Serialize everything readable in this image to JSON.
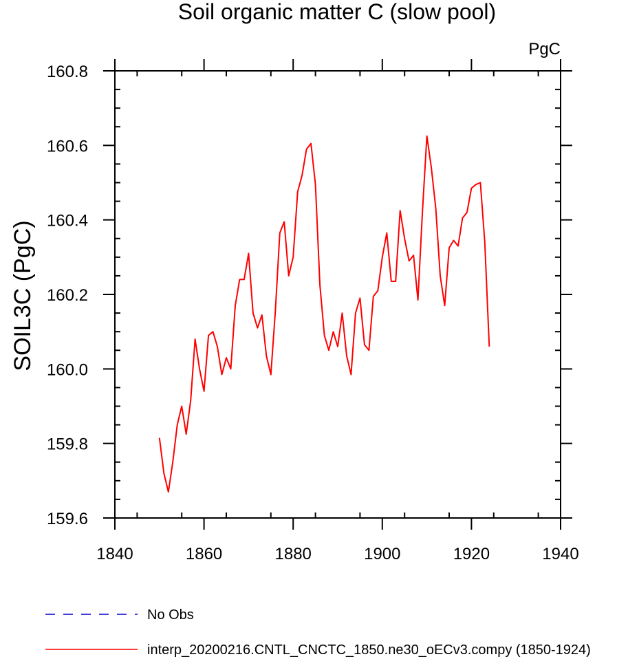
{
  "chart_data": {
    "type": "line",
    "title": "Soil organic matter C (slow pool)",
    "units": "PgC",
    "ylabel": "SOIL3C  (PgC)",
    "xlabel": "",
    "xlim": [
      1840,
      1940
    ],
    "ylim": [
      159.6,
      160.8
    ],
    "xticks": [
      1840,
      1860,
      1880,
      1900,
      1920,
      1940
    ],
    "yticks": [
      159.6,
      159.8,
      160.0,
      160.2,
      160.4,
      160.6,
      160.8
    ],
    "ytick_labels": [
      "159.6",
      "159.8",
      "160.0",
      "160.2",
      "160.4",
      "160.6",
      "160.8"
    ],
    "grid": false,
    "legend": [
      {
        "label": "No Obs",
        "style": "dashed",
        "color": "#0000cc"
      },
      {
        "label": "interp_20200216.CNTL_CNCTC_1850.ne30_oECv3.compy (1850-1924)",
        "style": "solid",
        "color": "#ff0000"
      }
    ],
    "series": [
      {
        "name": "interp_20200216.CNTL_CNCTC_1850.ne30_oECv3.compy (1850-1924)",
        "color": "#ff0000",
        "x": [
          1850,
          1851,
          1852,
          1853,
          1854,
          1855,
          1856,
          1857,
          1858,
          1859,
          1860,
          1861,
          1862,
          1863,
          1864,
          1865,
          1866,
          1867,
          1868,
          1869,
          1870,
          1871,
          1872,
          1873,
          1874,
          1875,
          1876,
          1877,
          1878,
          1879,
          1880,
          1881,
          1882,
          1883,
          1884,
          1885,
          1886,
          1887,
          1888,
          1889,
          1890,
          1891,
          1892,
          1893,
          1894,
          1895,
          1896,
          1897,
          1898,
          1899,
          1900,
          1901,
          1902,
          1903,
          1904,
          1905,
          1906,
          1907,
          1908,
          1909,
          1910,
          1911,
          1912,
          1913,
          1914,
          1915,
          1916,
          1917,
          1918,
          1919,
          1920,
          1921,
          1922,
          1923,
          1924
        ],
        "y": [
          159.815,
          159.72,
          159.67,
          159.75,
          159.85,
          159.9,
          159.825,
          159.915,
          160.08,
          160.0,
          159.94,
          160.09,
          160.1,
          160.06,
          159.985,
          160.03,
          160.0,
          160.17,
          160.24,
          160.24,
          160.31,
          160.15,
          160.11,
          160.145,
          160.035,
          159.985,
          160.155,
          160.365,
          160.395,
          160.25,
          160.3,
          160.475,
          160.52,
          160.59,
          160.605,
          160.495,
          160.225,
          160.09,
          160.05,
          160.1,
          160.06,
          160.15,
          160.035,
          159.985,
          160.15,
          160.19,
          160.065,
          160.05,
          160.195,
          160.21,
          160.3,
          160.365,
          160.235,
          160.235,
          160.425,
          160.35,
          160.29,
          160.305,
          160.185,
          160.42,
          160.625,
          160.54,
          160.43,
          160.25,
          160.17,
          160.325,
          160.345,
          160.33,
          160.405,
          160.42,
          160.485,
          160.495,
          160.5,
          160.34,
          160.06
        ]
      }
    ]
  }
}
